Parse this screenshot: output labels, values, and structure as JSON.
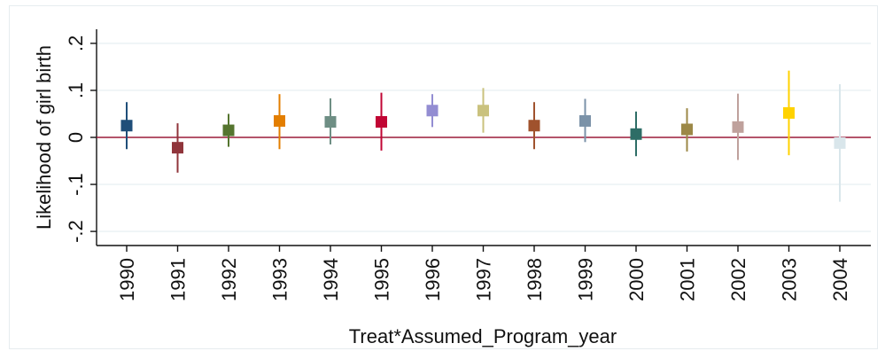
{
  "chart_data": {
    "type": "scatter",
    "subtype": "coefficient-plot-with-confidence-intervals",
    "xlabel": "Treat*Assumed_Program_year",
    "ylabel": "Likelihood of girl birth",
    "ylim": [
      -0.23,
      0.23
    ],
    "yticks": [
      {
        "value": 0.2,
        "label": ".2"
      },
      {
        "value": 0.1,
        "label": ".1"
      },
      {
        "value": 0,
        "label": "0"
      },
      {
        "value": -0.1,
        "label": "-.1"
      },
      {
        "value": -0.2,
        "label": "-.2"
      }
    ],
    "reference_line": {
      "y": 0,
      "color": "#9b1b3a"
    },
    "grid": true,
    "grid_color": "#e4eef0",
    "categories": [
      "1990",
      "1991",
      "1992",
      "1993",
      "1994",
      "1995",
      "1996",
      "1997",
      "1998",
      "1999",
      "2000",
      "2001",
      "2002",
      "2003",
      "2004"
    ],
    "points": [
      {
        "x": "1990",
        "y": 0.025,
        "lo": -0.025,
        "hi": 0.075,
        "color": "#1f4e79"
      },
      {
        "x": "1991",
        "y": -0.022,
        "lo": -0.075,
        "hi": 0.03,
        "color": "#90353b"
      },
      {
        "x": "1992",
        "y": 0.015,
        "lo": -0.02,
        "hi": 0.05,
        "color": "#55752f"
      },
      {
        "x": "1993",
        "y": 0.035,
        "lo": -0.025,
        "hi": 0.092,
        "color": "#e37e00"
      },
      {
        "x": "1994",
        "y": 0.033,
        "lo": -0.015,
        "hi": 0.083,
        "color": "#6e8e84"
      },
      {
        "x": "1995",
        "y": 0.033,
        "lo": -0.028,
        "hi": 0.095,
        "color": "#c10534"
      },
      {
        "x": "1996",
        "y": 0.057,
        "lo": 0.022,
        "hi": 0.092,
        "color": "#938dd2"
      },
      {
        "x": "1997",
        "y": 0.057,
        "lo": 0.01,
        "hi": 0.105,
        "color": "#cac27e"
      },
      {
        "x": "1998",
        "y": 0.025,
        "lo": -0.025,
        "hi": 0.075,
        "color": "#a0522d"
      },
      {
        "x": "1999",
        "y": 0.035,
        "lo": -0.01,
        "hi": 0.082,
        "color": "#7b92a8"
      },
      {
        "x": "2000",
        "y": 0.007,
        "lo": -0.04,
        "hi": 0.055,
        "color": "#2d6d66"
      },
      {
        "x": "2001",
        "y": 0.017,
        "lo": -0.03,
        "hi": 0.062,
        "color": "#9c8847"
      },
      {
        "x": "2002",
        "y": 0.022,
        "lo": -0.048,
        "hi": 0.093,
        "color": "#bfa19c"
      },
      {
        "x": "2003",
        "y": 0.052,
        "lo": -0.038,
        "hi": 0.142,
        "color": "#ffd200"
      },
      {
        "x": "2004",
        "y": -0.012,
        "lo": -0.137,
        "hi": 0.113,
        "color": "#d9e6eb"
      }
    ]
  }
}
